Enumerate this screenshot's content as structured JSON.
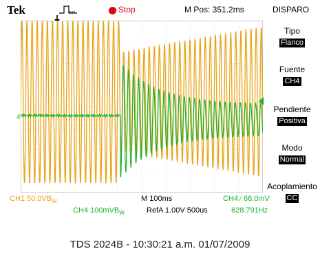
{
  "header": {
    "brand": "Tek",
    "trigger_state": "Stop",
    "horizontal_position": "M Pos: 351.2ms",
    "menu_title": "DISPARO"
  },
  "side_menu": {
    "items": [
      {
        "label": "Tipo",
        "value": "Flanco"
      },
      {
        "label": "Fuente",
        "value": "CH4"
      },
      {
        "label": "Pendiente",
        "value": "Positiva"
      },
      {
        "label": "Modo",
        "value": "Normal"
      },
      {
        "label": "Acoplamiento",
        "value": "CC"
      }
    ]
  },
  "readouts": {
    "ch1_scale": "CH1  50.0VB",
    "ch1_suffix": "W",
    "timebase": "M 100ms",
    "ch4_scale": "CH4  100mVB",
    "ch4_suffix": "W",
    "refa": "RefA 1.00V 500",
    "refa_unit": "us",
    "trigger_level": "CH4  ∕  66.0mV",
    "trigger_frequency": "628.791Hz"
  },
  "footer": {
    "instrument_timestamp": "TDS 2024B - 10:30:21 a.m.   01/07/2009"
  },
  "colors": {
    "ch1": "#e8a317",
    "ch4": "#19b32d",
    "stop": "#e2001a",
    "grid": "#b8b8b8"
  },
  "icons": [
    "trigger-waveform-icon",
    "stop-indicator-icon",
    "trigger-position-marker-icon",
    "ch4-ground-marker-icon",
    "trigger-level-marker-icon"
  ]
}
